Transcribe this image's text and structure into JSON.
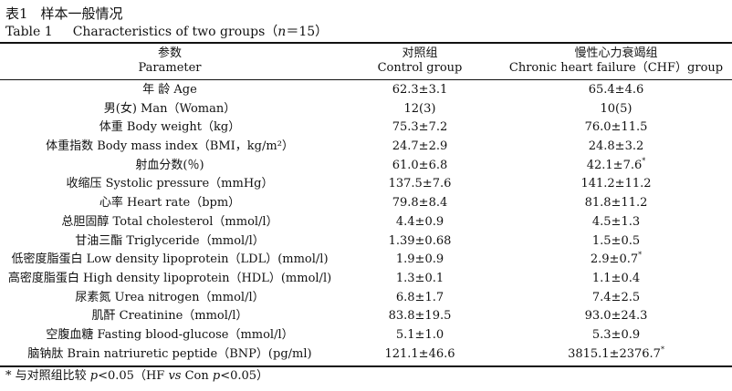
{
  "caption": {
    "cn_label": "表1",
    "cn_title": "样本一般情况",
    "en_label": "Table 1",
    "en_title": "Characteristics of two groups",
    "n_open": "（",
    "n_var": "n",
    "n_eq": "＝15）"
  },
  "columns": [
    {
      "cn": "参数",
      "en": "Parameter"
    },
    {
      "cn": "对照组",
      "en": "Control group"
    },
    {
      "cn": "慢性心力衰竭组",
      "en": "Chronic heart failure（CHF）group"
    }
  ],
  "rows": [
    {
      "param": "年 龄 Age",
      "control": "62.3±3.1",
      "chf": "65.4±4.6",
      "chf_mark": ""
    },
    {
      "param": "男(女) Man（Woman）",
      "control": "12(3)",
      "chf": "10(5)",
      "chf_mark": ""
    },
    {
      "param": "体重 Body weight（kg）",
      "control": "75.3±7.2",
      "chf": "76.0±11.5",
      "chf_mark": ""
    },
    {
      "param": "体重指数 Body mass index（BMI，kg/m²）",
      "control": "24.7±2.9",
      "chf": "24.8±3.2",
      "chf_mark": ""
    },
    {
      "param": "射血分数(％)",
      "control": "61.0±6.8",
      "chf": "42.1±7.6",
      "chf_mark": "*"
    },
    {
      "param": "收缩压 Systolic pressure（mmHg）",
      "control": "137.5±7.6",
      "chf": "141.2±11.2",
      "chf_mark": ""
    },
    {
      "param": "心率 Heart rate（bpm）",
      "control": "79.8±8.4",
      "chf": "81.8±11.2",
      "chf_mark": ""
    },
    {
      "param": "总胆固醇 Total cholesterol（mmol/l）",
      "control": "4.4±0.9",
      "chf": "4.5±1.3",
      "chf_mark": ""
    },
    {
      "param": "甘油三酯 Triglyceride（mmol/l）",
      "control": "1.39±0.68",
      "chf": "1.5±0.5",
      "chf_mark": ""
    },
    {
      "param": "低密度脂蛋白 Low density lipoprotein（LDL）(mmol/l)",
      "control": "1.9±0.9",
      "chf": "2.9±0.7",
      "chf_mark": "*"
    },
    {
      "param": "高密度脂蛋白 High density lipoprotein（HDL）(mmol/l)",
      "control": "1.3±0.1",
      "chf": "1.1±0.4",
      "chf_mark": ""
    },
    {
      "param": "尿素氮 Urea nitrogen（mmol/l）",
      "control": "6.8±1.7",
      "chf": "7.4±2.5",
      "chf_mark": ""
    },
    {
      "param": "肌酐 Creatinine（mmol/l）",
      "control": "83.8±19.5",
      "chf": "93.0±24.3",
      "chf_mark": ""
    },
    {
      "param": "空腹血糖 Fasting blood-glucose（mmol/l）",
      "control": "5.1±1.0",
      "chf": "5.3±0.9",
      "chf_mark": ""
    },
    {
      "param": "脑钠肽 Brain natriuretic peptide（BNP）(pg/ml)",
      "control": "121.1±46.6",
      "chf": "3815.1±2376.7",
      "chf_mark": "*"
    }
  ],
  "footnote": {
    "mark": "*",
    "text_a": "与对照组比较 ",
    "p1": "p",
    "text_b": "<0.05（HF ",
    "vs": "vs",
    "text_c": " Con ",
    "p2": "p",
    "text_d": "<0.05）"
  }
}
